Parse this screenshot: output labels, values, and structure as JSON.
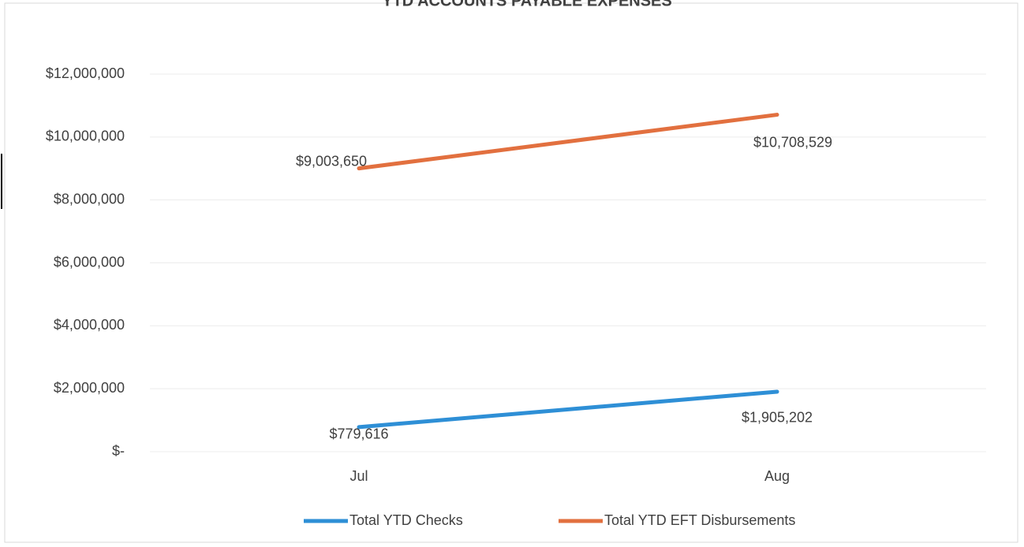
{
  "chart_data": {
    "type": "line",
    "title": "YTD ACCOUNTS PAYABLE EXPENSES",
    "categories": [
      "Jul",
      "Aug"
    ],
    "series": [
      {
        "name": "Total YTD Checks",
        "color": "#2e8fd6",
        "values": [
          779616,
          1905202
        ],
        "value_labels": [
          "$779,616",
          "$1,905,202"
        ]
      },
      {
        "name": "Total YTD EFT Disbursements",
        "color": "#e2703f",
        "values": [
          9003650,
          10708529
        ],
        "value_labels": [
          "$9,003,650",
          "$10,708,529"
        ]
      }
    ],
    "ylim": [
      0,
      12000000
    ],
    "yticks": [
      {
        "value": 0,
        "label": "$-"
      },
      {
        "value": 2000000,
        "label": "$2,000,000"
      },
      {
        "value": 4000000,
        "label": "$4,000,000"
      },
      {
        "value": 6000000,
        "label": "$6,000,000"
      },
      {
        "value": 8000000,
        "label": "$8,000,000"
      },
      {
        "value": 10000000,
        "label": "$10,000,000"
      },
      {
        "value": 12000000,
        "label": "$12,000,000"
      }
    ],
    "grid": true,
    "legend": "bottom"
  }
}
